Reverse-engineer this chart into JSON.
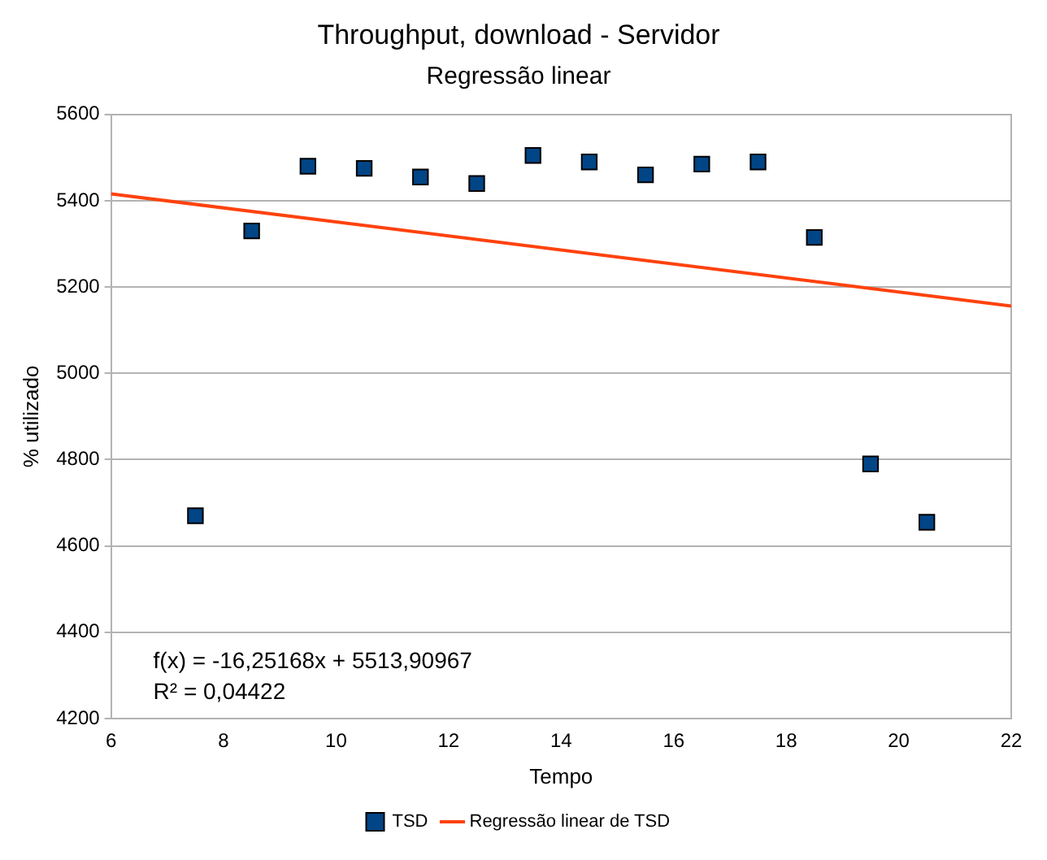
{
  "chart_data": {
    "type": "scatter",
    "title": "Throughput, download - Servidor",
    "subtitle": "Regressão linear",
    "xlabel": "Tempo",
    "ylabel": "% utilizado",
    "xlim": [
      6,
      22
    ],
    "xticks": [
      6,
      8,
      10,
      12,
      14,
      16,
      18,
      20,
      22
    ],
    "ylim": [
      4200,
      5600
    ],
    "yticks": [
      4200,
      4400,
      4600,
      4800,
      5000,
      5200,
      5400,
      5600
    ],
    "grid": "y",
    "legend": "bottom",
    "series": [
      {
        "name": "TSD",
        "type": "scatter",
        "marker": "square",
        "color": "#004586",
        "x": [
          7.5,
          8.5,
          9.5,
          10.5,
          11.5,
          12.5,
          13.5,
          14.5,
          15.5,
          16.5,
          17.5,
          18.5,
          19.5,
          20.5
        ],
        "values": [
          4670,
          5330,
          5480,
          5475,
          5455,
          5440,
          5505,
          5490,
          5460,
          5485,
          5490,
          5315,
          4790,
          4655
        ]
      },
      {
        "name": "Regressão linear de TSD",
        "type": "line",
        "color": "#ff420e",
        "x": [
          6,
          22
        ],
        "values": [
          5416,
          5156
        ]
      }
    ],
    "annotations": [
      "f(x) = -16,25168x + 5513,90967",
      "R² = 0,04422"
    ]
  }
}
